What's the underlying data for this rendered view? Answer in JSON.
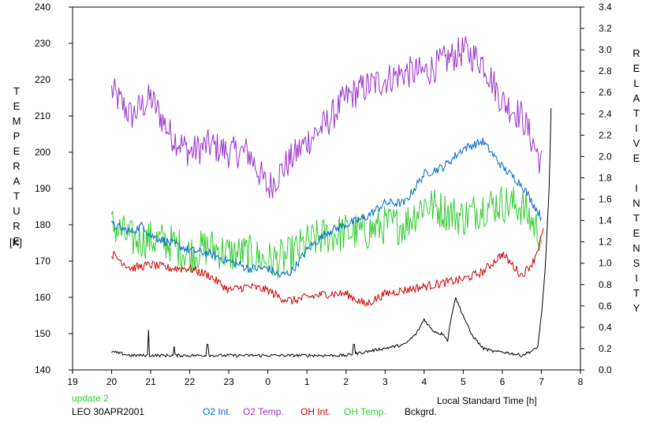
{
  "chart_data": {
    "type": "line",
    "ylabel_left": "TEMPERATURE",
    "ylabel_left_unit": "[K]",
    "ylabel_right": "RELATIVE INTENSITY",
    "xlabel": "Local Standard Time [h]",
    "x_ticks": [
      "19",
      "20",
      "21",
      "22",
      "23",
      "0",
      "1",
      "2",
      "3",
      "4",
      "5",
      "6",
      "7",
      "8"
    ],
    "y_left_ticks": [
      "240",
      "230",
      "220",
      "210",
      "200",
      "190",
      "180",
      "170",
      "160",
      "150",
      "140"
    ],
    "y_right_ticks": [
      "3.4",
      "3.2",
      "3.0",
      "2.8",
      "2.6",
      "2.4",
      "2.2",
      "2.0",
      "1.8",
      "1.6",
      "1.4",
      "1.2",
      "1.0",
      "0.8",
      "0.6",
      "0.4",
      "0.2",
      "0.0"
    ],
    "xlim": [
      19,
      32
    ],
    "y_left_lim": [
      140,
      240
    ],
    "y_right_lim": [
      0.0,
      3.4
    ],
    "grid": false,
    "legend_position": "bottom",
    "series": [
      {
        "name": "O2 Int.",
        "color": "#0066cc",
        "axis": "left",
        "noise": 1.2,
        "x": [
          20.0,
          20.5,
          20.8,
          21.0,
          21.5,
          22.0,
          22.5,
          23.0,
          23.5,
          24.0,
          24.3,
          24.6,
          25.0,
          25.5,
          26.0,
          26.5,
          27.0,
          27.5,
          28.0,
          28.5,
          29.0,
          29.5,
          30.0,
          30.5,
          31.0
        ],
        "y": [
          180,
          178,
          180,
          177,
          175,
          173,
          172,
          170,
          168,
          168,
          166,
          167,
          173,
          178,
          180,
          182,
          186,
          186,
          194,
          196,
          201,
          203,
          196,
          191,
          182
        ]
      },
      {
        "name": "O2 Temp.",
        "color": "#9933cc",
        "axis": "left",
        "noise": 4.5,
        "x": [
          20.0,
          20.5,
          21.0,
          21.5,
          22.0,
          22.5,
          23.0,
          23.5,
          24.0,
          24.5,
          25.0,
          25.5,
          26.0,
          26.5,
          27.0,
          27.5,
          28.0,
          28.5,
          29.0,
          29.5,
          30.0,
          30.5,
          31.0
        ],
        "y": [
          217,
          210,
          215,
          205,
          200,
          202,
          200,
          200,
          190,
          197,
          203,
          208,
          215,
          218,
          220,
          222,
          222,
          225,
          228,
          225,
          214,
          210,
          197
        ]
      },
      {
        "name": "OH Int.",
        "color": "#cc0000",
        "axis": "left",
        "noise": 1.2,
        "x": [
          20.0,
          20.5,
          21.0,
          21.5,
          22.0,
          22.5,
          23.0,
          23.5,
          24.0,
          24.3,
          24.6,
          25.0,
          25.5,
          26.0,
          26.5,
          27.0,
          27.5,
          28.0,
          28.5,
          29.0,
          29.5,
          30.0,
          30.5,
          30.8,
          31.05
        ],
        "y": [
          172,
          168,
          169,
          168,
          168,
          166,
          162,
          163,
          162,
          160,
          159,
          160,
          161,
          161,
          158,
          161,
          162,
          163,
          164,
          165,
          167,
          172,
          166,
          170,
          178
        ]
      },
      {
        "name": "OH Temp.",
        "color": "#33cc33",
        "axis": "left",
        "noise": 5.5,
        "x": [
          20.0,
          20.5,
          21.0,
          21.5,
          22.0,
          22.5,
          23.0,
          23.5,
          24.0,
          24.5,
          25.0,
          25.5,
          26.0,
          26.5,
          27.0,
          27.5,
          28.0,
          28.5,
          29.0,
          29.5,
          30.0,
          30.5,
          31.0
        ],
        "y": [
          180,
          176,
          176,
          175,
          172,
          174,
          172,
          172,
          170,
          171,
          175,
          177,
          178,
          178,
          180,
          180,
          186,
          184,
          182,
          185,
          186,
          185,
          177
        ]
      },
      {
        "name": "Bckgrd.",
        "color": "#000000",
        "axis": "left",
        "noise": 0.4,
        "x": [
          20.0,
          20.5,
          21.0,
          22.0,
          23.0,
          24.0,
          25.0,
          26.0,
          26.5,
          27.0,
          27.5,
          27.8,
          28.0,
          28.2,
          28.4,
          28.5,
          28.6,
          28.7,
          28.8,
          29.0,
          29.2,
          29.5,
          29.8,
          30.0,
          30.5,
          30.9,
          31.0,
          31.1,
          31.2,
          31.25
        ],
        "y": [
          145,
          144,
          144,
          144,
          144,
          144,
          144,
          144,
          145,
          146,
          147,
          150,
          154,
          151,
          150,
          150,
          148,
          155,
          160,
          155,
          150,
          146,
          145,
          145,
          144,
          146,
          155,
          168,
          190,
          212
        ],
        "spikes": [
          {
            "x": 20.95,
            "y": 151
          },
          {
            "x": 21.6,
            "y": 146.5
          },
          {
            "x": 22.45,
            "y": 147
          },
          {
            "x": 26.2,
            "y": 147
          }
        ]
      }
    ]
  },
  "footer": {
    "update_label": "update 2",
    "site_label": "LEO 30APR2001"
  }
}
